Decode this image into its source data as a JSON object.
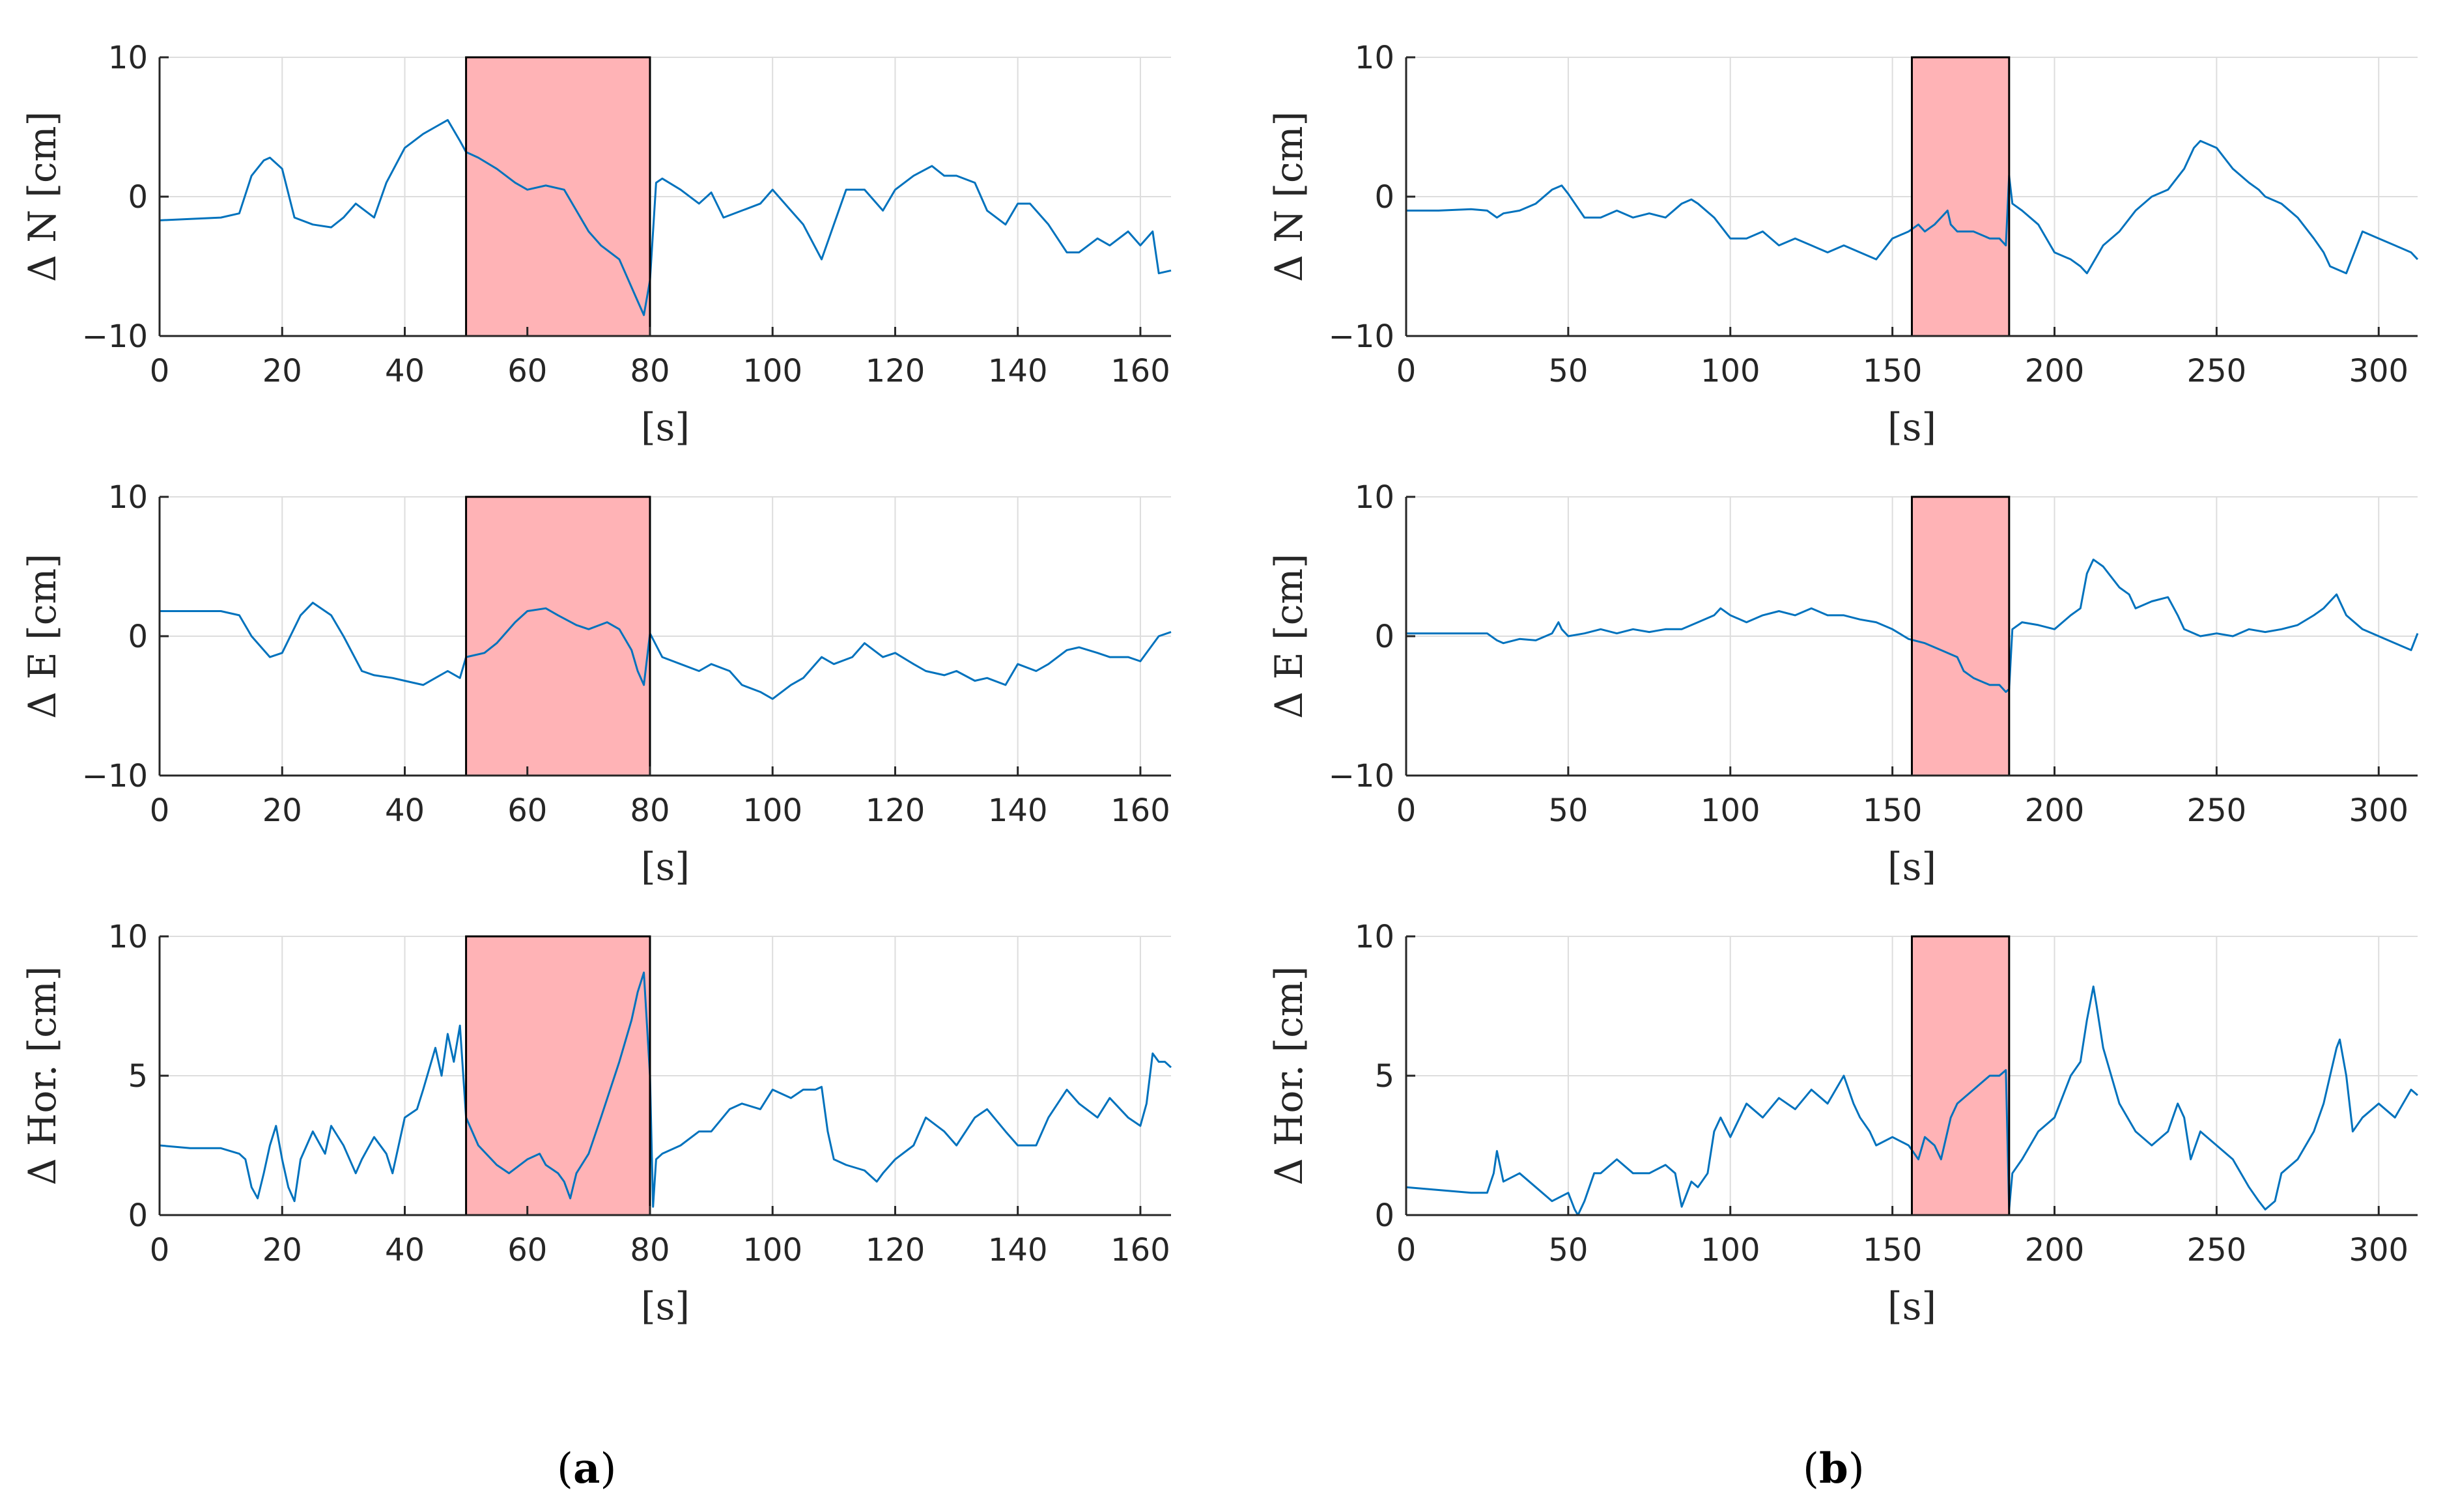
{
  "panels": [
    {
      "open": "(",
      "letter": "a",
      "close": ")"
    },
    {
      "open": "(",
      "letter": "b",
      "close": ")"
    }
  ],
  "colors": {
    "line": "#0072BD",
    "shade": "#FFB3B6",
    "axis": "#262626",
    "grid": "#DDDDDD"
  },
  "chart_data": [
    {
      "type": "line",
      "id": "a-north",
      "ylabel": "Δ N [cm]",
      "xlabel": "[s]",
      "xlim": [
        0,
        165
      ],
      "ylim": [
        -10,
        10
      ],
      "xticks": [
        0,
        20,
        40,
        60,
        80,
        100,
        120,
        140,
        160
      ],
      "yticks": [
        -10,
        0,
        10
      ],
      "ytick_labels": [
        "−10",
        "0",
        "10"
      ],
      "shaded_interval": [
        50,
        80
      ],
      "grid": true,
      "x": [
        0,
        5,
        10,
        13,
        15,
        17,
        18,
        20,
        22,
        25,
        28,
        30,
        32,
        35,
        37,
        40,
        43,
        45,
        47,
        49,
        50,
        52,
        55,
        58,
        60,
        63,
        66,
        68,
        70,
        72,
        75,
        78,
        79,
        80,
        81,
        82,
        85,
        88,
        90,
        92,
        95,
        98,
        100,
        103,
        105,
        108,
        110,
        112,
        115,
        118,
        120,
        123,
        126,
        128,
        130,
        133,
        135,
        138,
        140,
        142,
        145,
        148,
        150,
        153,
        155,
        158,
        160,
        162,
        163,
        165
      ],
      "y": [
        -1.7,
        -1.6,
        -1.5,
        -1.2,
        1.5,
        2.6,
        2.8,
        2.0,
        -1.5,
        -2.0,
        -2.2,
        -1.5,
        -0.5,
        -1.5,
        1.0,
        3.5,
        4.5,
        5.0,
        5.5,
        4.0,
        3.2,
        2.8,
        2.0,
        1.0,
        0.5,
        0.8,
        0.5,
        -1.0,
        -2.5,
        -3.5,
        -4.5,
        -7.5,
        -8.5,
        -6.0,
        1.0,
        1.3,
        0.5,
        -0.5,
        0.3,
        -1.5,
        -1.0,
        -0.5,
        0.5,
        -1.0,
        -2.0,
        -4.5,
        -2.0,
        0.5,
        0.5,
        -1.0,
        0.5,
        1.5,
        2.2,
        1.5,
        1.5,
        1.0,
        -1.0,
        -2.0,
        -0.5,
        -0.5,
        -2.0,
        -4.0,
        -4.0,
        -3.0,
        -3.5,
        -2.5,
        -3.5,
        -2.5,
        -5.5,
        -5.3
      ]
    },
    {
      "type": "line",
      "id": "a-east",
      "ylabel": "Δ E [cm]",
      "xlabel": "[s]",
      "xlim": [
        0,
        165
      ],
      "ylim": [
        -10,
        10
      ],
      "xticks": [
        0,
        20,
        40,
        60,
        80,
        100,
        120,
        140,
        160
      ],
      "yticks": [
        -10,
        0,
        10
      ],
      "ytick_labels": [
        "−10",
        "0",
        "10"
      ],
      "shaded_interval": [
        50,
        80
      ],
      "grid": true,
      "x": [
        0,
        5,
        10,
        13,
        15,
        18,
        20,
        23,
        25,
        28,
        30,
        33,
        35,
        38,
        40,
        43,
        45,
        47,
        49,
        50,
        53,
        55,
        58,
        60,
        63,
        65,
        68,
        70,
        73,
        75,
        77,
        78,
        79,
        80,
        82,
        85,
        88,
        90,
        93,
        95,
        98,
        100,
        103,
        105,
        108,
        110,
        113,
        115,
        118,
        120,
        123,
        125,
        128,
        130,
        133,
        135,
        138,
        140,
        143,
        145,
        148,
        150,
        153,
        155,
        158,
        160,
        163,
        165
      ],
      "y": [
        1.8,
        1.8,
        1.8,
        1.5,
        0,
        -1.5,
        -1.2,
        1.5,
        2.4,
        1.5,
        0,
        -2.5,
        -2.8,
        -3.0,
        -3.2,
        -3.5,
        -3.0,
        -2.5,
        -3.0,
        -1.5,
        -1.2,
        -0.5,
        1.0,
        1.8,
        2.0,
        1.5,
        0.8,
        0.5,
        1.0,
        0.5,
        -1.0,
        -2.5,
        -3.5,
        0.2,
        -1.5,
        -2.0,
        -2.5,
        -2.0,
        -2.5,
        -3.5,
        -4.0,
        -4.5,
        -3.5,
        -3.0,
        -1.5,
        -2.0,
        -1.5,
        -0.5,
        -1.5,
        -1.2,
        -2.0,
        -2.5,
        -2.8,
        -2.5,
        -3.2,
        -3.0,
        -3.5,
        -2.0,
        -2.5,
        -2.0,
        -1.0,
        -0.8,
        -1.2,
        -1.5,
        -1.5,
        -1.8,
        0,
        0.3
      ]
    },
    {
      "type": "line",
      "id": "a-horizontal",
      "ylabel": "Δ Hor. [cm]",
      "xlabel": "[s]",
      "xlim": [
        0,
        165
      ],
      "ylim": [
        0,
        10
      ],
      "xticks": [
        0,
        20,
        40,
        60,
        80,
        100,
        120,
        140,
        160
      ],
      "yticks": [
        0,
        5,
        10
      ],
      "ytick_labels": [
        "0",
        "5",
        "10"
      ],
      "shaded_interval": [
        50,
        80
      ],
      "grid": true,
      "x": [
        0,
        5,
        10,
        13,
        14,
        15,
        16,
        17,
        18,
        19,
        20,
        21,
        22,
        23,
        25,
        27,
        28,
        30,
        32,
        33,
        35,
        37,
        38,
        40,
        42,
        43,
        45,
        46,
        47,
        48,
        49,
        50,
        52,
        55,
        57,
        60,
        62,
        63,
        65,
        66,
        67,
        68,
        70,
        72,
        75,
        77,
        78,
        79,
        80,
        80.5,
        81,
        82,
        85,
        88,
        90,
        93,
        95,
        98,
        100,
        103,
        105,
        107,
        108,
        109,
        110,
        112,
        115,
        117,
        118,
        120,
        123,
        125,
        128,
        130,
        133,
        135,
        138,
        140,
        143,
        145,
        148,
        150,
        153,
        155,
        158,
        160,
        161,
        162,
        163,
        164,
        165
      ],
      "y": [
        2.5,
        2.4,
        2.4,
        2.2,
        2.0,
        1.0,
        0.6,
        1.5,
        2.5,
        3.2,
        2.0,
        1.0,
        0.5,
        2.0,
        3.0,
        2.2,
        3.2,
        2.5,
        1.5,
        2.0,
        2.8,
        2.2,
        1.5,
        3.5,
        3.8,
        4.5,
        6.0,
        5.0,
        6.5,
        5.5,
        6.8,
        3.5,
        2.5,
        1.8,
        1.5,
        2.0,
        2.2,
        1.8,
        1.5,
        1.2,
        0.6,
        1.5,
        2.2,
        3.5,
        5.5,
        7.0,
        8.0,
        8.7,
        5.0,
        0.3,
        2.0,
        2.2,
        2.5,
        3.0,
        3.0,
        3.8,
        4.0,
        3.8,
        4.5,
        4.2,
        4.5,
        4.5,
        4.6,
        3.0,
        2.0,
        1.8,
        1.6,
        1.2,
        1.5,
        2.0,
        2.5,
        3.5,
        3.0,
        2.5,
        3.5,
        3.8,
        3.0,
        2.5,
        2.5,
        3.5,
        4.5,
        4.0,
        3.5,
        4.2,
        3.5,
        3.2,
        4.0,
        5.8,
        5.5,
        5.5,
        5.3
      ]
    },
    {
      "type": "line",
      "id": "b-north",
      "ylabel": "Δ N [cm]",
      "xlabel": "[s]",
      "xlim": [
        0,
        312
      ],
      "ylim": [
        -10,
        10
      ],
      "xticks": [
        0,
        50,
        100,
        150,
        200,
        250,
        300
      ],
      "yticks": [
        -10,
        0,
        10
      ],
      "ytick_labels": [
        "−10",
        "0",
        "10"
      ],
      "shaded_interval": [
        156,
        186
      ],
      "grid": true,
      "x": [
        0,
        10,
        20,
        25,
        28,
        30,
        35,
        40,
        45,
        48,
        50,
        55,
        60,
        65,
        70,
        75,
        80,
        85,
        88,
        90,
        95,
        100,
        105,
        110,
        115,
        120,
        125,
        130,
        135,
        140,
        145,
        150,
        155,
        158,
        160,
        163,
        165,
        167,
        168,
        170,
        175,
        180,
        183,
        185,
        186,
        187,
        190,
        195,
        200,
        205,
        208,
        210,
        215,
        220,
        225,
        230,
        235,
        240,
        243,
        245,
        250,
        255,
        260,
        263,
        265,
        270,
        275,
        280,
        283,
        285,
        290,
        295,
        300,
        305,
        310,
        312
      ],
      "y": [
        -1.0,
        -1.0,
        -0.9,
        -1.0,
        -1.5,
        -1.2,
        -1.0,
        -0.5,
        0.5,
        0.8,
        0.2,
        -1.5,
        -1.5,
        -1.0,
        -1.5,
        -1.2,
        -1.5,
        -0.5,
        -0.2,
        -0.5,
        -1.5,
        -3.0,
        -3.0,
        -2.5,
        -3.5,
        -3.0,
        -3.5,
        -4.0,
        -3.5,
        -4.0,
        -4.5,
        -3.0,
        -2.5,
        -2.0,
        -2.5,
        -2.0,
        -1.5,
        -1.0,
        -2.0,
        -2.5,
        -2.5,
        -3.0,
        -3.0,
        -3.5,
        1.5,
        -0.5,
        -1.0,
        -2.0,
        -4.0,
        -4.5,
        -5.0,
        -5.5,
        -3.5,
        -2.5,
        -1.0,
        0,
        0.5,
        2.0,
        3.5,
        4.0,
        3.5,
        2.0,
        1.0,
        0.5,
        0,
        -0.5,
        -1.5,
        -3.0,
        -4.0,
        -5.0,
        -5.5,
        -2.5,
        -3.0,
        -3.5,
        -4.0,
        -4.5
      ]
    },
    {
      "type": "line",
      "id": "b-east",
      "ylabel": "Δ E [cm]",
      "xlabel": "[s]",
      "xlim": [
        0,
        312
      ],
      "ylim": [
        -10,
        10
      ],
      "xticks": [
        0,
        50,
        100,
        150,
        200,
        250,
        300
      ],
      "yticks": [
        -10,
        0,
        10
      ],
      "ytick_labels": [
        "−10",
        "0",
        "10"
      ],
      "shaded_interval": [
        156,
        186
      ],
      "grid": true,
      "x": [
        0,
        10,
        20,
        25,
        28,
        30,
        35,
        40,
        45,
        47,
        48,
        50,
        55,
        60,
        65,
        70,
        75,
        80,
        85,
        90,
        95,
        97,
        100,
        105,
        110,
        115,
        120,
        125,
        130,
        135,
        140,
        145,
        150,
        155,
        160,
        165,
        170,
        172,
        175,
        180,
        183,
        185,
        186,
        187,
        190,
        195,
        200,
        205,
        208,
        210,
        212,
        215,
        220,
        223,
        225,
        230,
        235,
        238,
        240,
        245,
        250,
        255,
        260,
        265,
        270,
        275,
        280,
        283,
        285,
        287,
        288,
        290,
        295,
        300,
        305,
        310,
        312
      ],
      "y": [
        0.2,
        0.2,
        0.2,
        0.2,
        -0.3,
        -0.5,
        -0.2,
        -0.3,
        0.2,
        1.0,
        0.5,
        0,
        0.2,
        0.5,
        0.2,
        0.5,
        0.3,
        0.5,
        0.5,
        1.0,
        1.5,
        2.0,
        1.5,
        1.0,
        1.5,
        1.8,
        1.5,
        2.0,
        1.5,
        1.5,
        1.2,
        1.0,
        0.5,
        -0.2,
        -0.5,
        -1.0,
        -1.5,
        -2.5,
        -3.0,
        -3.5,
        -3.5,
        -4.0,
        -3.8,
        0.5,
        1.0,
        0.8,
        0.5,
        1.5,
        2.0,
        4.5,
        5.5,
        5.0,
        3.5,
        3.0,
        2.0,
        2.5,
        2.8,
        1.5,
        0.5,
        0,
        0.2,
        0,
        0.5,
        0.3,
        0.5,
        0.8,
        1.5,
        2.0,
        2.5,
        3.0,
        2.5,
        1.5,
        0.5,
        0,
        -0.5,
        -1.0,
        0.2
      ]
    },
    {
      "type": "line",
      "id": "b-horizontal",
      "ylabel": "Δ Hor. [cm]",
      "xlabel": "[s]",
      "xlim": [
        0,
        312
      ],
      "ylim": [
        0,
        10
      ],
      "xticks": [
        0,
        50,
        100,
        150,
        200,
        250,
        300
      ],
      "yticks": [
        0,
        5,
        10
      ],
      "ytick_labels": [
        "0",
        "5",
        "10"
      ],
      "shaded_interval": [
        156,
        186
      ],
      "grid": true,
      "x": [
        0,
        10,
        20,
        25,
        27,
        28,
        30,
        35,
        40,
        45,
        50,
        52,
        53,
        55,
        58,
        60,
        65,
        70,
        75,
        80,
        83,
        85,
        88,
        90,
        93,
        95,
        97,
        100,
        105,
        110,
        115,
        120,
        125,
        130,
        135,
        138,
        140,
        143,
        145,
        150,
        155,
        158,
        160,
        163,
        165,
        168,
        170,
        172,
        175,
        180,
        183,
        185,
        186,
        187,
        190,
        195,
        200,
        205,
        208,
        210,
        212,
        213,
        215,
        220,
        225,
        230,
        235,
        238,
        240,
        242,
        245,
        250,
        255,
        260,
        263,
        265,
        268,
        270,
        275,
        280,
        283,
        285,
        287,
        288,
        290,
        292,
        295,
        300,
        305,
        310,
        312
      ],
      "y": [
        1.0,
        0.9,
        0.8,
        0.8,
        1.5,
        2.3,
        1.2,
        1.5,
        1.0,
        0.5,
        0.8,
        0.2,
        0,
        0.5,
        1.5,
        1.5,
        2.0,
        1.5,
        1.5,
        1.8,
        1.5,
        0.3,
        1.2,
        1.0,
        1.5,
        3.0,
        3.5,
        2.8,
        4.0,
        3.5,
        4.2,
        3.8,
        4.5,
        4.0,
        5.0,
        4.0,
        3.5,
        3.0,
        2.5,
        2.8,
        2.5,
        2.0,
        2.8,
        2.5,
        2.0,
        3.5,
        4.0,
        4.2,
        4.5,
        5.0,
        5.0,
        5.2,
        0.2,
        1.5,
        2.0,
        3.0,
        3.5,
        5.0,
        5.5,
        7.0,
        8.2,
        7.5,
        6.0,
        4.0,
        3.0,
        2.5,
        3.0,
        4.0,
        3.5,
        2.0,
        3.0,
        2.5,
        2.0,
        1.0,
        0.5,
        0.2,
        0.5,
        1.5,
        2.0,
        3.0,
        4.0,
        5.0,
        6.0,
        6.3,
        5.0,
        3.0,
        3.5,
        4.0,
        3.5,
        4.5,
        4.3
      ]
    }
  ]
}
